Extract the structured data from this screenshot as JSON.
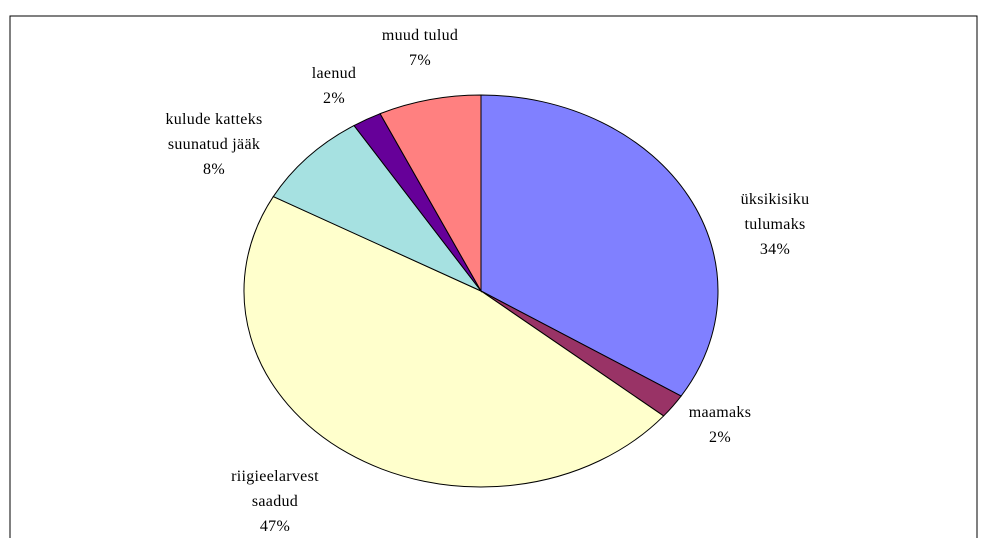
{
  "chart_data": {
    "type": "pie",
    "categories": [
      "üksikisiku tulumaks",
      "maamaks",
      "riigieelarvest saadud",
      "kulude katteks suunatud jääk",
      "laenud",
      "muud tulud"
    ],
    "values": [
      34,
      2,
      47,
      8,
      2,
      7
    ],
    "value_labels": [
      "34%",
      "2%",
      "47%",
      "8%",
      "2%",
      "7%"
    ],
    "colors": [
      "#8080ff",
      "#993366",
      "#ffffcc",
      "#a6e1e1",
      "#660099",
      "#ff8080"
    ]
  }
}
